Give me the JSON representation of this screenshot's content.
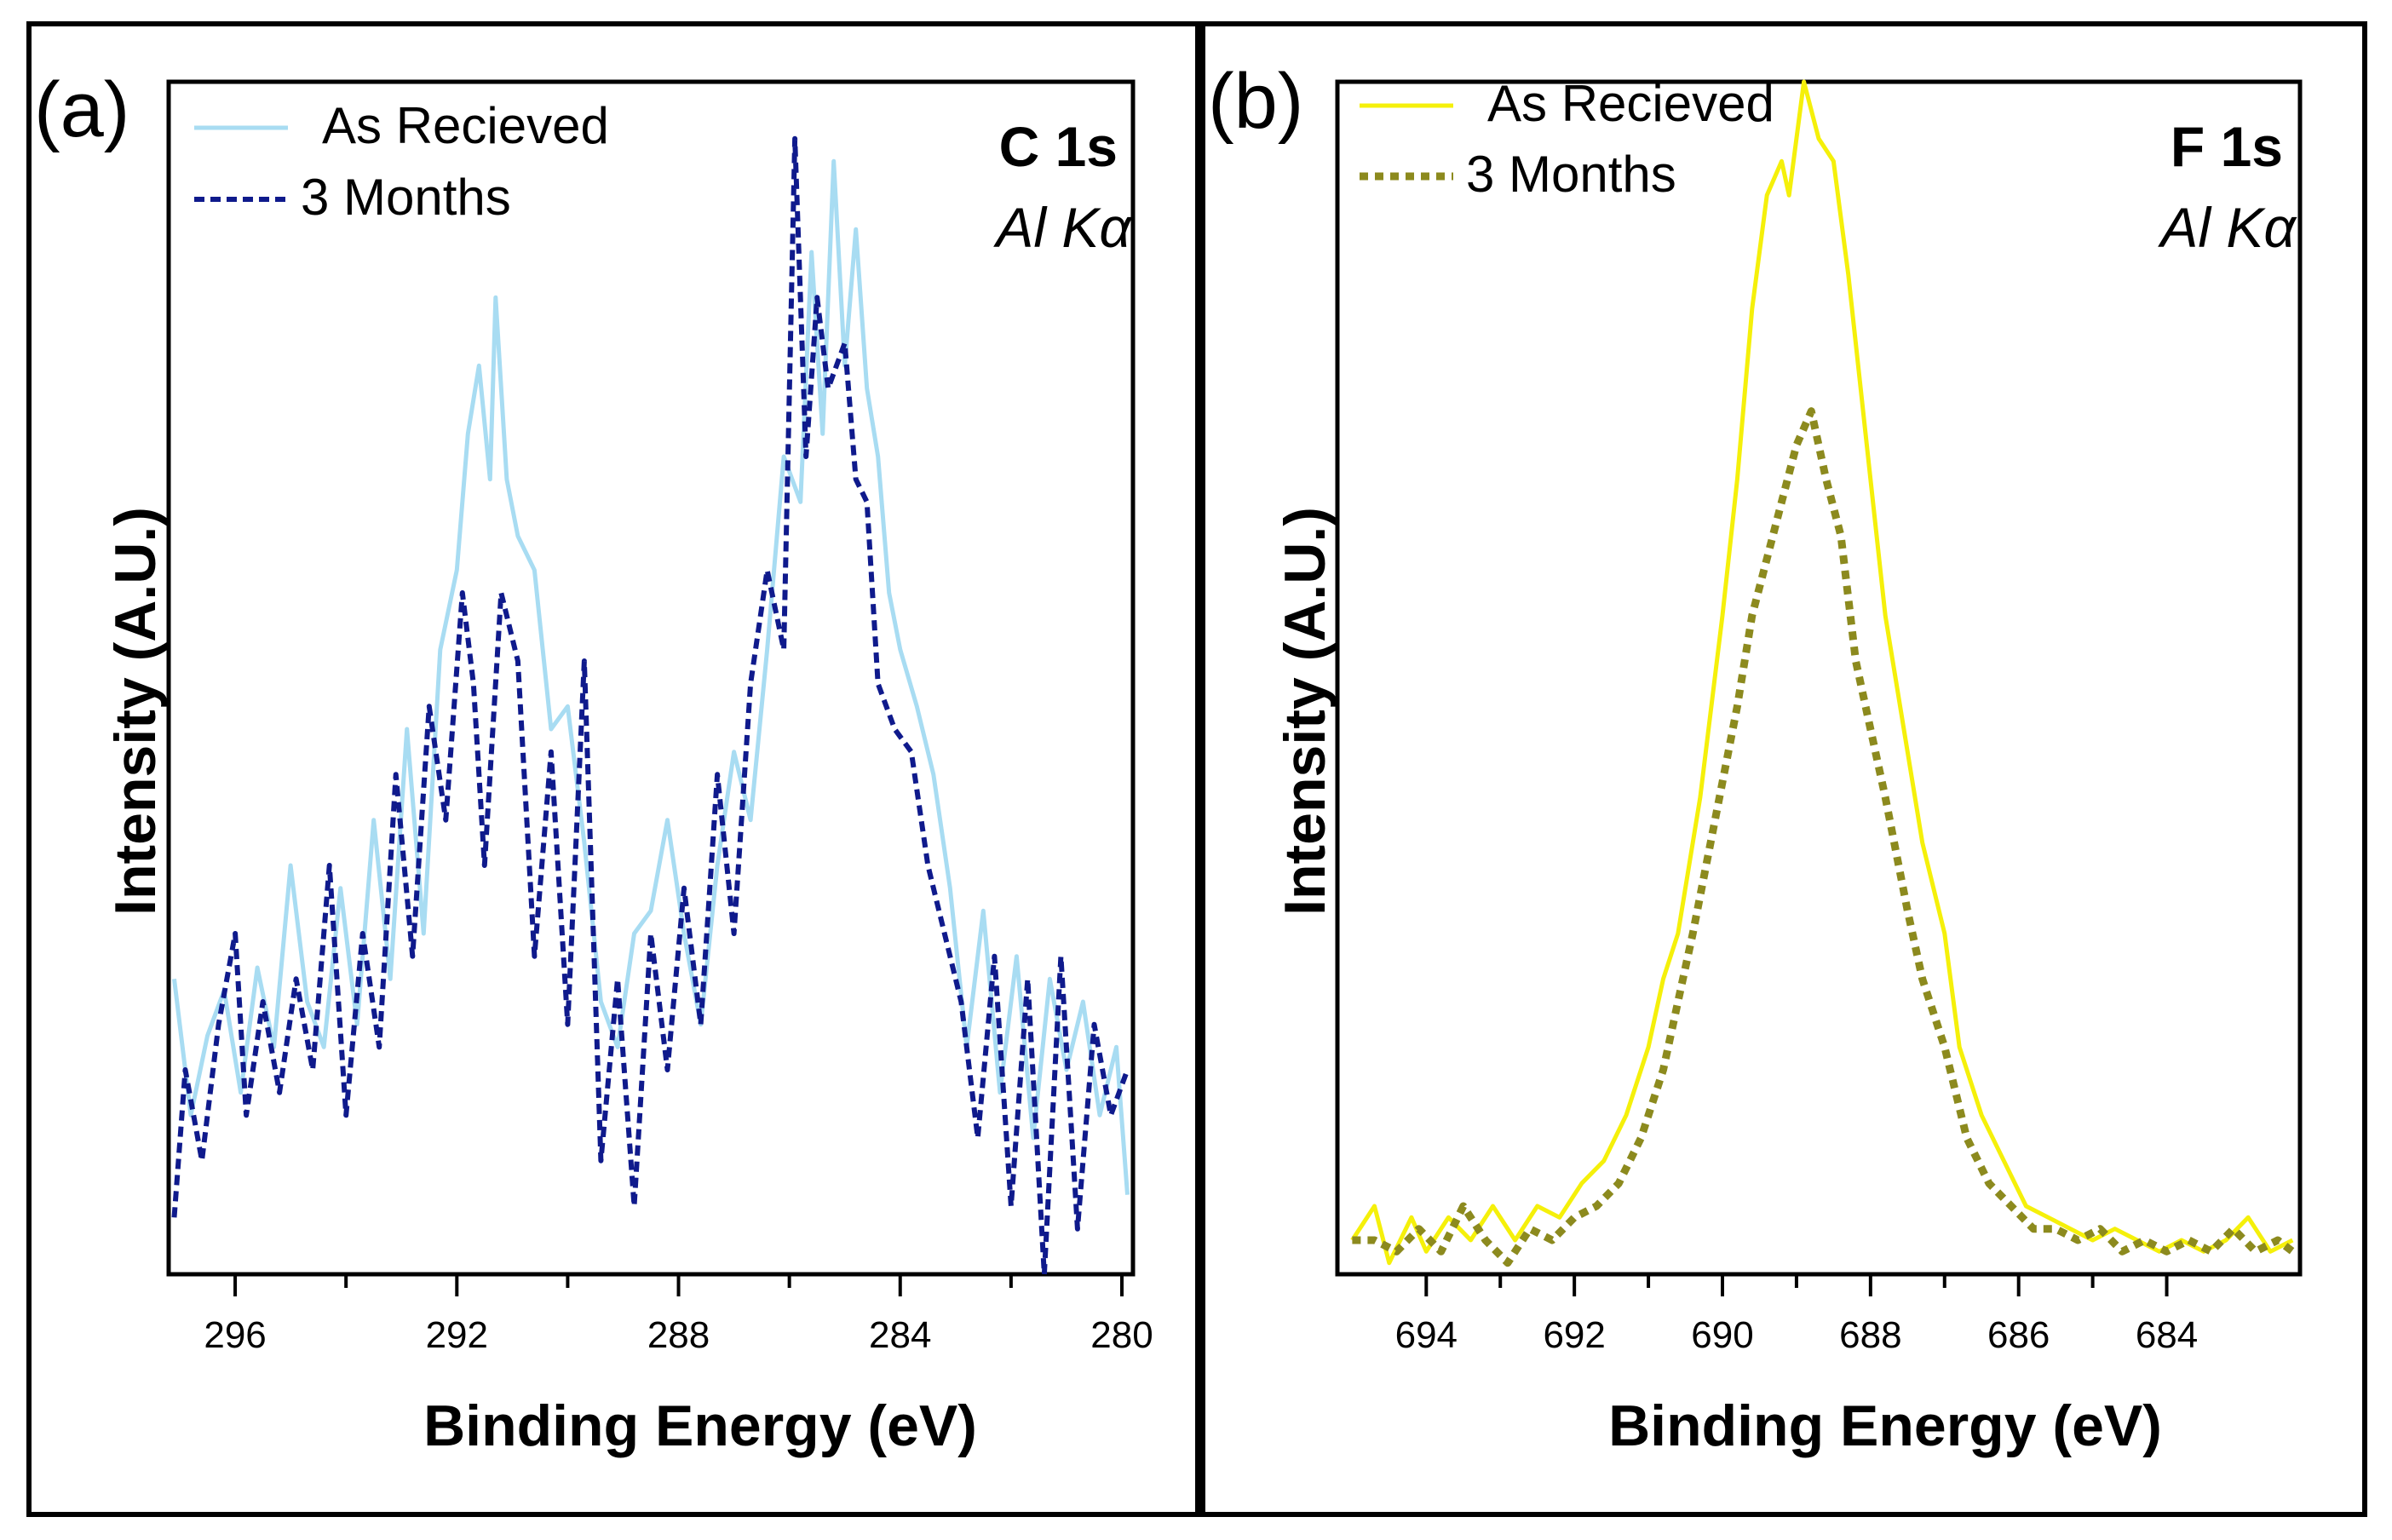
{
  "chart_data": [
    {
      "panel": "(a)",
      "type": "line",
      "title": "",
      "annotations": [
        "C 1s",
        "Al Kα"
      ],
      "xlabel": "Binding Energy (eV)",
      "ylabel": "Intensity (A.U.)",
      "xlim": [
        297.2,
        279.8
      ],
      "ylim": [
        0,
        1.05
      ],
      "x_reversed": true,
      "xticks": [
        296,
        292,
        288,
        284,
        280
      ],
      "xtick_labels": [
        "296",
        "292",
        "288",
        "284",
        "280"
      ],
      "legend": "top-left",
      "series": [
        {
          "name": "As Recieved",
          "color": "#a8dcf2",
          "style": "solid",
          "points": [
            [
              297.1,
              0.26
            ],
            [
              296.8,
              0.14
            ],
            [
              296.5,
              0.21
            ],
            [
              296.2,
              0.25
            ],
            [
              295.9,
              0.16
            ],
            [
              295.6,
              0.27
            ],
            [
              295.3,
              0.2
            ],
            [
              295.0,
              0.36
            ],
            [
              294.7,
              0.24
            ],
            [
              294.4,
              0.2
            ],
            [
              294.1,
              0.34
            ],
            [
              293.8,
              0.22
            ],
            [
              293.5,
              0.4
            ],
            [
              293.2,
              0.26
            ],
            [
              292.9,
              0.48
            ],
            [
              292.6,
              0.3
            ],
            [
              292.3,
              0.55
            ],
            [
              292.0,
              0.62
            ],
            [
              291.8,
              0.74
            ],
            [
              291.6,
              0.8
            ],
            [
              291.4,
              0.7
            ],
            [
              291.3,
              0.86
            ],
            [
              291.1,
              0.7
            ],
            [
              290.9,
              0.65
            ],
            [
              290.6,
              0.62
            ],
            [
              290.3,
              0.48
            ],
            [
              290.0,
              0.5
            ],
            [
              289.7,
              0.38
            ],
            [
              289.4,
              0.24
            ],
            [
              289.1,
              0.2
            ],
            [
              288.8,
              0.3
            ],
            [
              288.5,
              0.32
            ],
            [
              288.2,
              0.4
            ],
            [
              287.9,
              0.3
            ],
            [
              287.6,
              0.22
            ],
            [
              287.3,
              0.36
            ],
            [
              287.0,
              0.46
            ],
            [
              286.7,
              0.4
            ],
            [
              286.4,
              0.55
            ],
            [
              286.1,
              0.72
            ],
            [
              285.8,
              0.68
            ],
            [
              285.6,
              0.9
            ],
            [
              285.4,
              0.74
            ],
            [
              285.2,
              0.98
            ],
            [
              285.0,
              0.8
            ],
            [
              284.8,
              0.92
            ],
            [
              284.6,
              0.78
            ],
            [
              284.4,
              0.72
            ],
            [
              284.2,
              0.6
            ],
            [
              284.0,
              0.55
            ],
            [
              283.7,
              0.5
            ],
            [
              283.4,
              0.44
            ],
            [
              283.1,
              0.34
            ],
            [
              282.8,
              0.2
            ],
            [
              282.5,
              0.32
            ],
            [
              282.2,
              0.16
            ],
            [
              281.9,
              0.28
            ],
            [
              281.6,
              0.12
            ],
            [
              281.3,
              0.26
            ],
            [
              281.0,
              0.18
            ],
            [
              280.7,
              0.24
            ],
            [
              280.4,
              0.14
            ],
            [
              280.1,
              0.2
            ],
            [
              279.9,
              0.07
            ]
          ]
        },
        {
          "name": "3 Months",
          "color": "#0f1a8c",
          "style": "dashed",
          "points": [
            [
              297.1,
              0.05
            ],
            [
              296.9,
              0.18
            ],
            [
              296.6,
              0.1
            ],
            [
              296.3,
              0.22
            ],
            [
              296.0,
              0.3
            ],
            [
              295.8,
              0.14
            ],
            [
              295.5,
              0.24
            ],
            [
              295.2,
              0.16
            ],
            [
              294.9,
              0.26
            ],
            [
              294.6,
              0.18
            ],
            [
              294.3,
              0.36
            ],
            [
              294.0,
              0.14
            ],
            [
              293.7,
              0.3
            ],
            [
              293.4,
              0.2
            ],
            [
              293.1,
              0.44
            ],
            [
              292.8,
              0.28
            ],
            [
              292.5,
              0.5
            ],
            [
              292.2,
              0.4
            ],
            [
              291.9,
              0.6
            ],
            [
              291.7,
              0.52
            ],
            [
              291.5,
              0.36
            ],
            [
              291.2,
              0.6
            ],
            [
              290.9,
              0.54
            ],
            [
              290.6,
              0.28
            ],
            [
              290.3,
              0.46
            ],
            [
              290.0,
              0.22
            ],
            [
              289.7,
              0.54
            ],
            [
              289.4,
              0.1
            ],
            [
              289.1,
              0.26
            ],
            [
              288.8,
              0.06
            ],
            [
              288.5,
              0.3
            ],
            [
              288.2,
              0.18
            ],
            [
              287.9,
              0.34
            ],
            [
              287.6,
              0.22
            ],
            [
              287.3,
              0.44
            ],
            [
              287.0,
              0.3
            ],
            [
              286.7,
              0.52
            ],
            [
              286.4,
              0.62
            ],
            [
              286.1,
              0.55
            ],
            [
              285.9,
              1.0
            ],
            [
              285.7,
              0.72
            ],
            [
              285.5,
              0.86
            ],
            [
              285.3,
              0.78
            ],
            [
              285.0,
              0.82
            ],
            [
              284.8,
              0.7
            ],
            [
              284.6,
              0.68
            ],
            [
              284.4,
              0.52
            ],
            [
              284.1,
              0.48
            ],
            [
              283.8,
              0.46
            ],
            [
              283.5,
              0.36
            ],
            [
              283.2,
              0.3
            ],
            [
              282.9,
              0.24
            ],
            [
              282.6,
              0.12
            ],
            [
              282.3,
              0.28
            ],
            [
              282.0,
              0.06
            ],
            [
              281.7,
              0.26
            ],
            [
              281.4,
              0.0
            ],
            [
              281.1,
              0.28
            ],
            [
              280.8,
              0.04
            ],
            [
              280.5,
              0.22
            ],
            [
              280.2,
              0.14
            ],
            [
              279.9,
              0.18
            ]
          ]
        }
      ]
    },
    {
      "panel": "(b)",
      "type": "line",
      "title": "",
      "annotations": [
        "F 1s",
        "Al Kα"
      ],
      "xlabel": "Binding Energy (eV)",
      "ylabel": "Intensity (A.U.)",
      "xlim": [
        695.2,
        682.2
      ],
      "ylim": [
        0,
        1.05
      ],
      "x_reversed": true,
      "xticks": [
        694,
        692,
        690,
        688,
        686,
        684
      ],
      "xtick_labels": [
        "694",
        "692",
        "690",
        "688",
        "686",
        "684"
      ],
      "legend": "top-left",
      "series": [
        {
          "name": "As Recieved",
          "color": "#f5f00a",
          "style": "solid",
          "points": [
            [
              695.0,
              0.03
            ],
            [
              694.7,
              0.06
            ],
            [
              694.5,
              0.01
            ],
            [
              694.2,
              0.05
            ],
            [
              694.0,
              0.02
            ],
            [
              693.7,
              0.05
            ],
            [
              693.4,
              0.03
            ],
            [
              693.1,
              0.06
            ],
            [
              692.8,
              0.03
            ],
            [
              692.5,
              0.06
            ],
            [
              692.2,
              0.05
            ],
            [
              691.9,
              0.08
            ],
            [
              691.6,
              0.1
            ],
            [
              691.3,
              0.14
            ],
            [
              691.0,
              0.2
            ],
            [
              690.8,
              0.26
            ],
            [
              690.6,
              0.3
            ],
            [
              690.3,
              0.42
            ],
            [
              690.0,
              0.58
            ],
            [
              689.8,
              0.7
            ],
            [
              689.6,
              0.85
            ],
            [
              689.4,
              0.95
            ],
            [
              689.2,
              0.98
            ],
            [
              689.1,
              0.95
            ],
            [
              688.9,
              1.05
            ],
            [
              688.7,
              1.0
            ],
            [
              688.5,
              0.98
            ],
            [
              688.3,
              0.88
            ],
            [
              688.0,
              0.7
            ],
            [
              687.8,
              0.58
            ],
            [
              687.5,
              0.46
            ],
            [
              687.3,
              0.38
            ],
            [
              687.0,
              0.3
            ],
            [
              686.8,
              0.2
            ],
            [
              686.5,
              0.14
            ],
            [
              686.2,
              0.1
            ],
            [
              685.9,
              0.06
            ],
            [
              685.6,
              0.05
            ],
            [
              685.3,
              0.04
            ],
            [
              685.0,
              0.03
            ],
            [
              684.7,
              0.04
            ],
            [
              684.4,
              0.03
            ],
            [
              684.1,
              0.02
            ],
            [
              683.8,
              0.03
            ],
            [
              683.5,
              0.02
            ],
            [
              683.2,
              0.03
            ],
            [
              682.9,
              0.05
            ],
            [
              682.6,
              0.02
            ],
            [
              682.3,
              0.03
            ]
          ]
        },
        {
          "name": "3 Months",
          "color": "#8c8a1e",
          "style": "dotted",
          "points": [
            [
              695.0,
              0.03
            ],
            [
              694.7,
              0.03
            ],
            [
              694.4,
              0.02
            ],
            [
              694.1,
              0.04
            ],
            [
              693.8,
              0.02
            ],
            [
              693.5,
              0.06
            ],
            [
              693.2,
              0.03
            ],
            [
              692.9,
              0.01
            ],
            [
              692.6,
              0.04
            ],
            [
              692.3,
              0.03
            ],
            [
              692.0,
              0.05
            ],
            [
              691.7,
              0.06
            ],
            [
              691.4,
              0.08
            ],
            [
              691.1,
              0.12
            ],
            [
              690.8,
              0.18
            ],
            [
              690.6,
              0.24
            ],
            [
              690.4,
              0.3
            ],
            [
              690.1,
              0.4
            ],
            [
              689.8,
              0.5
            ],
            [
              689.6,
              0.58
            ],
            [
              689.4,
              0.63
            ],
            [
              689.2,
              0.68
            ],
            [
              689.0,
              0.73
            ],
            [
              688.8,
              0.76
            ],
            [
              688.6,
              0.7
            ],
            [
              688.4,
              0.65
            ],
            [
              688.2,
              0.54
            ],
            [
              688.0,
              0.48
            ],
            [
              687.8,
              0.42
            ],
            [
              687.5,
              0.32
            ],
            [
              687.3,
              0.26
            ],
            [
              687.0,
              0.2
            ],
            [
              686.7,
              0.12
            ],
            [
              686.4,
              0.08
            ],
            [
              686.1,
              0.06
            ],
            [
              685.8,
              0.04
            ],
            [
              685.5,
              0.04
            ],
            [
              685.2,
              0.03
            ],
            [
              684.9,
              0.04
            ],
            [
              684.6,
              0.02
            ],
            [
              684.3,
              0.03
            ],
            [
              684.0,
              0.02
            ],
            [
              683.7,
              0.03
            ],
            [
              683.4,
              0.02
            ],
            [
              683.1,
              0.04
            ],
            [
              682.8,
              0.02
            ],
            [
              682.5,
              0.03
            ],
            [
              682.3,
              0.02
            ]
          ]
        }
      ]
    }
  ],
  "colors": {
    "frame": "#000000",
    "background": "#ffffff"
  }
}
